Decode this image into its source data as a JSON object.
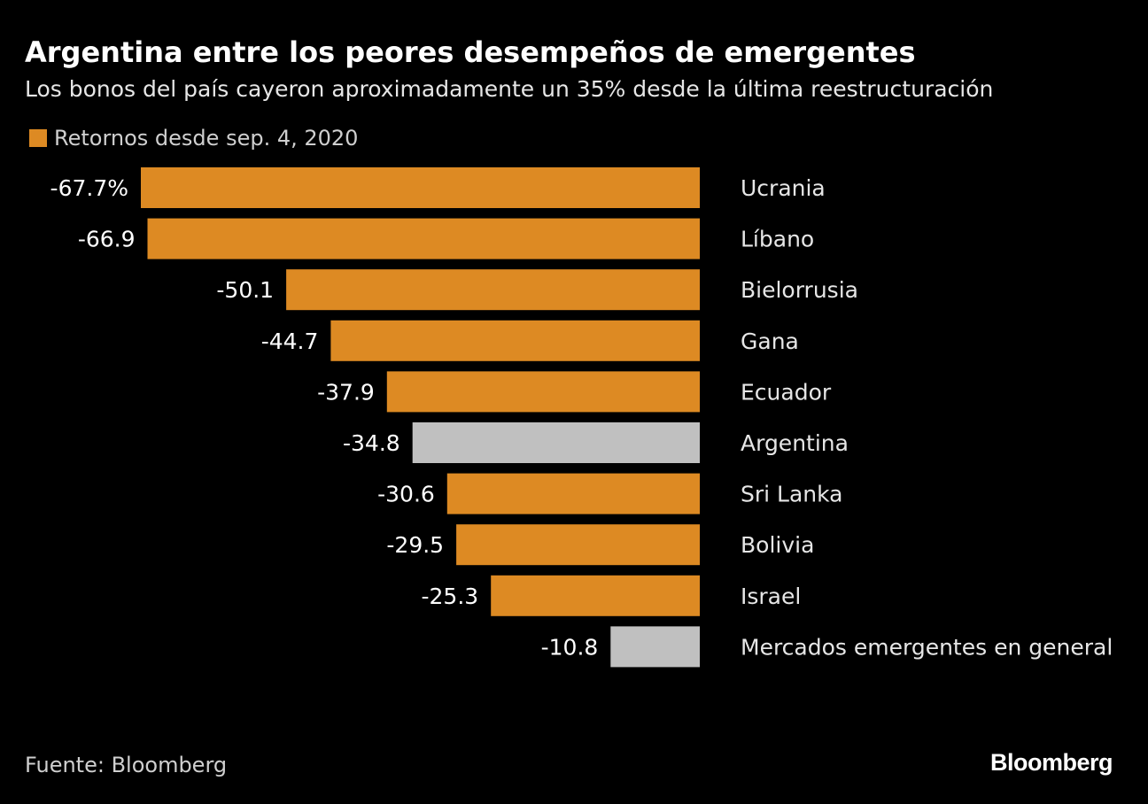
{
  "chart_data": {
    "type": "bar",
    "orientation": "horizontal",
    "title": "Argentina entre los peores desempeños de emergentes",
    "subtitle": "Los bonos del país cayeron aproximadamente un 35% desde la última reestructuración",
    "legend": {
      "label": "Retornos desde sep. 4, 2020",
      "color": "#dd8a23",
      "placement": "top-left"
    },
    "categories": [
      "Ucrania",
      "Líbano",
      "Bielorrusia",
      "Gana",
      "Ecuador",
      "Argentina",
      "Sri Lanka",
      "Bolivia",
      "Israel",
      "Mercados emergentes en general"
    ],
    "values": [
      -67.7,
      -66.9,
      -50.1,
      -44.7,
      -37.9,
      -34.8,
      -30.6,
      -29.5,
      -25.3,
      -10.8
    ],
    "value_labels": [
      "-67.7%",
      "-66.9",
      "-50.1",
      "-44.7",
      "-37.9",
      "-34.8",
      "-30.6",
      "-29.5",
      "-25.3",
      "-10.8"
    ],
    "bar_colors": [
      "#dd8a23",
      "#dd8a23",
      "#dd8a23",
      "#dd8a23",
      "#dd8a23",
      "#c0c0c0",
      "#dd8a23",
      "#dd8a23",
      "#dd8a23",
      "#c0c0c0"
    ],
    "xlim": [
      -68,
      0
    ],
    "grid": false
  },
  "footer": {
    "source": "Fuente: Bloomberg",
    "brand": "Bloomberg"
  }
}
